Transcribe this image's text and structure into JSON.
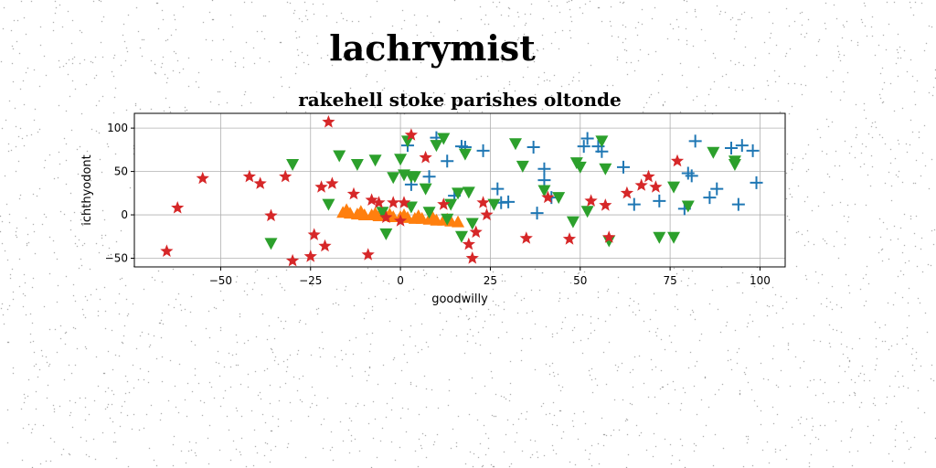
{
  "figure": {
    "suptitle": "lachrymist"
  },
  "chart_data": {
    "type": "scatter",
    "title": "rakehell stoke parishes oltonde",
    "xlabel": "goodwilly",
    "ylabel": "ichthyodont",
    "xlim": [
      -74,
      107
    ],
    "ylim": [
      -60,
      117
    ],
    "x_ticks": [
      -50,
      -25,
      0,
      25,
      50,
      75,
      100
    ],
    "y_ticks": [
      -50,
      0,
      50,
      100
    ],
    "x_tick_labels": [
      "−50",
      "−25",
      "0",
      "25",
      "50",
      "75",
      "100"
    ],
    "y_tick_labels": [
      "−50",
      "0",
      "50",
      "100"
    ],
    "grid": true,
    "colors": {
      "blue": "#1f77b4",
      "orange": "#ff7f0e",
      "green": "#2ca02c",
      "red": "#d62728"
    },
    "series": [
      {
        "marker": "plus",
        "color": "#1f77b4",
        "x": [
          2,
          3,
          8,
          10,
          13,
          15,
          17,
          18,
          23,
          27,
          28,
          37,
          38,
          40,
          40,
          42,
          51,
          52,
          55,
          56,
          62,
          72,
          79,
          80,
          81,
          82,
          86,
          88,
          92,
          94,
          95,
          98,
          99,
          65,
          30
        ],
        "y": [
          80,
          35,
          44,
          89,
          62,
          22,
          79,
          78,
          74,
          30,
          14,
          78,
          2,
          40,
          53,
          20,
          79,
          88,
          79,
          73,
          55,
          16,
          7,
          48,
          45,
          85,
          20,
          30,
          77,
          12,
          80,
          74,
          37,
          12,
          15
        ]
      },
      {
        "marker": "triangle-up",
        "color": "#ff7f0e",
        "x": [
          -16,
          -14,
          -12,
          -10,
          -8,
          -6,
          -4,
          -2,
          0,
          2,
          4,
          6,
          8,
          10,
          12,
          14,
          16,
          -15,
          -11,
          -7,
          -3,
          1,
          5,
          9,
          13
        ],
        "y": [
          3,
          2,
          1,
          0,
          0,
          -1,
          -1,
          -2,
          -2,
          -3,
          -4,
          -4,
          -5,
          -6,
          -6,
          -7,
          -8,
          6,
          4,
          2,
          1,
          0,
          -1,
          -3,
          -5
        ]
      },
      {
        "marker": "triangle-down",
        "color": "#2ca02c",
        "x": [
          -30,
          -20,
          -17,
          -12,
          -7,
          -5,
          -4,
          -2,
          0,
          2,
          3,
          4,
          7,
          8,
          10,
          12,
          13,
          14,
          16,
          17,
          18,
          19,
          20,
          26,
          32,
          34,
          40,
          44,
          48,
          49,
          50,
          52,
          56,
          57,
          58,
          72,
          76,
          76,
          80,
          87,
          93,
          93,
          -36,
          3,
          1
        ],
        "y": [
          58,
          12,
          68,
          58,
          63,
          3,
          -22,
          43,
          64,
          85,
          44,
          44,
          30,
          3,
          80,
          88,
          -5,
          12,
          25,
          -25,
          70,
          26,
          -10,
          12,
          82,
          56,
          28,
          20,
          -8,
          60,
          55,
          4,
          85,
          53,
          -30,
          -26,
          -26,
          32,
          10,
          72,
          58,
          62,
          -33,
          9,
          46
        ]
      },
      {
        "marker": "star",
        "color": "#d62728",
        "x": [
          -65,
          -62,
          -55,
          -42,
          -39,
          -36,
          -32,
          -30,
          -25,
          -24,
          -22,
          -21,
          -19,
          -20,
          -13,
          -9,
          -8,
          -6,
          -4,
          -2,
          0,
          1,
          3,
          7,
          12,
          19,
          20,
          21,
          23,
          24,
          35,
          41,
          47,
          53,
          57,
          58,
          63,
          67,
          69,
          71,
          77
        ],
        "y": [
          -42,
          8,
          42,
          44,
          36,
          -1,
          44,
          -53,
          -48,
          -23,
          32,
          -36,
          36,
          107,
          24,
          -46,
          17,
          14,
          -3,
          14,
          -7,
          14,
          92,
          66,
          12,
          -34,
          -50,
          -20,
          14,
          0,
          -27,
          20,
          -28,
          16,
          11,
          -26,
          25,
          34,
          44,
          32,
          62
        ]
      }
    ]
  }
}
